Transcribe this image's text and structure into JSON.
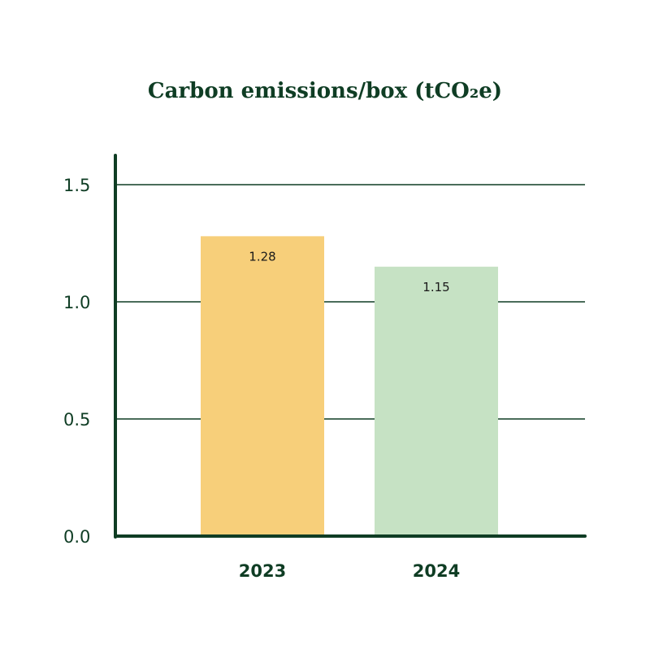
{
  "colors": {
    "axis": "#0f3d24",
    "grid": "#0f3d24",
    "text": "#0f3d24",
    "bar_2023": "#f7cf7a",
    "bar_2024": "#c6e2c4",
    "data_label": "#1a1a1a"
  },
  "chart_data": {
    "type": "bar",
    "title": "Carbon emissions/box (tCO₂e)",
    "xlabel": "",
    "ylabel": "",
    "categories": [
      "2023",
      "2024"
    ],
    "values": [
      1.28,
      1.15
    ],
    "data_labels": [
      "1.28",
      "1.15"
    ],
    "bar_colors": [
      "#f7cf7a",
      "#c6e2c4"
    ],
    "ylim": [
      0,
      1.6
    ],
    "yticks": [
      0.0,
      0.5,
      1.0,
      1.5
    ],
    "ytick_labels": [
      "0.0",
      "0.5",
      "1.0",
      "1.5"
    ],
    "grid": true,
    "legend": "none"
  }
}
